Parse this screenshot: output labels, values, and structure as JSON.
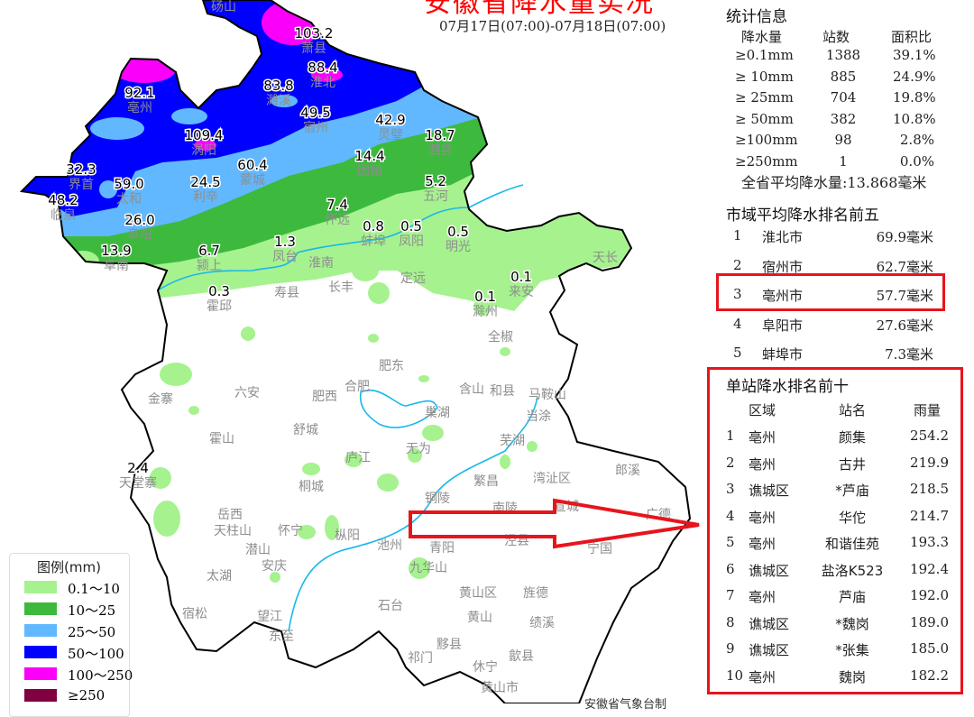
{
  "title": "安徽省降水量实况",
  "period": "07月17日(07:00)-07月18日(07:00)",
  "legend": {
    "title": "图例(mm)",
    "items": [
      {
        "label": "0.1～10",
        "color": "#a6f28f"
      },
      {
        "label": "10～25",
        "color": "#3dba3d"
      },
      {
        "label": "25～50",
        "color": "#61b8ff"
      },
      {
        "label": "50～100",
        "color": "#0000fe"
      },
      {
        "label": "100～250",
        "color": "#fa00fa"
      },
      {
        "label": "≥250",
        "color": "#800040"
      }
    ]
  },
  "stats": {
    "heading": "统计信息",
    "columns": [
      "降水量",
      "站数",
      "面积比"
    ],
    "rows": [
      [
        "≥0.1mm",
        "1388",
        "39.1%"
      ],
      [
        "≥ 10mm",
        "885",
        "24.9%"
      ],
      [
        "≥ 25mm",
        "704",
        "19.8%"
      ],
      [
        "≥ 50mm",
        "382",
        "10.8%"
      ],
      [
        "≥100mm",
        "98",
        "2.8%"
      ],
      [
        "≥250mm",
        "1",
        "0.0%"
      ]
    ],
    "average": "全省平均降水量:13.868毫米"
  },
  "city_rank": {
    "heading": "市域平均降水排名前五",
    "rows": [
      [
        "1",
        "淮北市",
        "69.9毫米"
      ],
      [
        "2",
        "宿州市",
        "62.7毫米"
      ],
      [
        "3",
        "亳州市",
        "57.7毫米"
      ],
      [
        "4",
        "阜阳市",
        "27.6毫米"
      ],
      [
        "5",
        "蚌埠市",
        "7.3毫米"
      ]
    ],
    "highlighted_rank": 3
  },
  "station_rank": {
    "heading": "单站降水排名前十",
    "columns": [
      "区域",
      "站名",
      "雨量"
    ],
    "rows": [
      [
        "1",
        "亳州",
        "颜集",
        "254.2"
      ],
      [
        "2",
        "亳州",
        "古井",
        "219.9"
      ],
      [
        "3",
        "谯城区",
        "*芦庙",
        "218.5"
      ],
      [
        "4",
        "亳州",
        "华佗",
        "214.7"
      ],
      [
        "5",
        "亳州",
        "和谐佳苑",
        "193.3"
      ],
      [
        "6",
        "谯城区",
        "盐洛K523",
        "192.4"
      ],
      [
        "7",
        "亳州",
        "芦庙",
        "192.0"
      ],
      [
        "8",
        "谯城区",
        "*魏岗",
        "189.0"
      ],
      [
        "9",
        "谯城区",
        "*张集",
        "185.0"
      ],
      [
        "10",
        "亳州",
        "魏岗",
        "182.2"
      ]
    ]
  },
  "station_values": [
    {
      "name": "萧县",
      "value": "103.2"
    },
    {
      "name": "淮北",
      "value": "88.4"
    },
    {
      "name": "濉溪",
      "value": "83.8"
    },
    {
      "name": "亳州",
      "value": "92.1"
    },
    {
      "name": "涡阳",
      "value": "109.4"
    },
    {
      "name": "宿州",
      "value": "49.5"
    },
    {
      "name": "灵璧",
      "value": "42.9"
    },
    {
      "name": "泗县",
      "value": "18.7"
    },
    {
      "name": "界首",
      "value": "32.3"
    },
    {
      "name": "太和",
      "value": "59.0"
    },
    {
      "name": "利辛",
      "value": "24.5"
    },
    {
      "name": "蒙城",
      "value": "60.4"
    },
    {
      "name": "固镇",
      "value": "14.4"
    },
    {
      "name": "临泉",
      "value": "48.2"
    },
    {
      "name": "阜阳",
      "value": "26.0"
    },
    {
      "name": "阜南",
      "value": "13.9"
    },
    {
      "name": "颍上",
      "value": "6.7"
    },
    {
      "name": "凤台",
      "value": "1.3"
    },
    {
      "name": "怀远",
      "value": "7.4"
    },
    {
      "name": "蚌埠",
      "value": "0.8"
    },
    {
      "name": "凤阳",
      "value": "0.5"
    },
    {
      "name": "五河",
      "value": "5.2"
    },
    {
      "name": "明光",
      "value": "0.5"
    },
    {
      "name": "霍邱",
      "value": "0.3"
    },
    {
      "name": "来安",
      "value": "0.1"
    },
    {
      "name": "滁州",
      "value": "0.1"
    },
    {
      "name": "天堂寨",
      "value": "2.4"
    }
  ],
  "place_names": [
    "砀山",
    "淮南",
    "寿县",
    "长丰",
    "定远",
    "天长",
    "全椒",
    "金寨",
    "六安",
    "肥西",
    "合肥",
    "肥东",
    "含山",
    "和县",
    "马鞍山",
    "当涂",
    "巢湖",
    "舒城",
    "霍山",
    "庐江",
    "无为",
    "芜湖",
    "桐城",
    "繁昌",
    "湾沚区",
    "铜陵",
    "南陵",
    "宣城",
    "郎溪",
    "广德",
    "岳西",
    "天柱山",
    "潜山",
    "怀宁",
    "安庆",
    "枞阳",
    "池州",
    "青阳",
    "泾县",
    "宁国",
    "九华山",
    "太湖",
    "宿松",
    "望江",
    "东至",
    "石台",
    "黄山区",
    "旌德",
    "黄山",
    "绩溪",
    "黟县",
    "祁门",
    "休宁",
    "歙县",
    "黄山市"
  ],
  "credit": "安徽省气象台制"
}
